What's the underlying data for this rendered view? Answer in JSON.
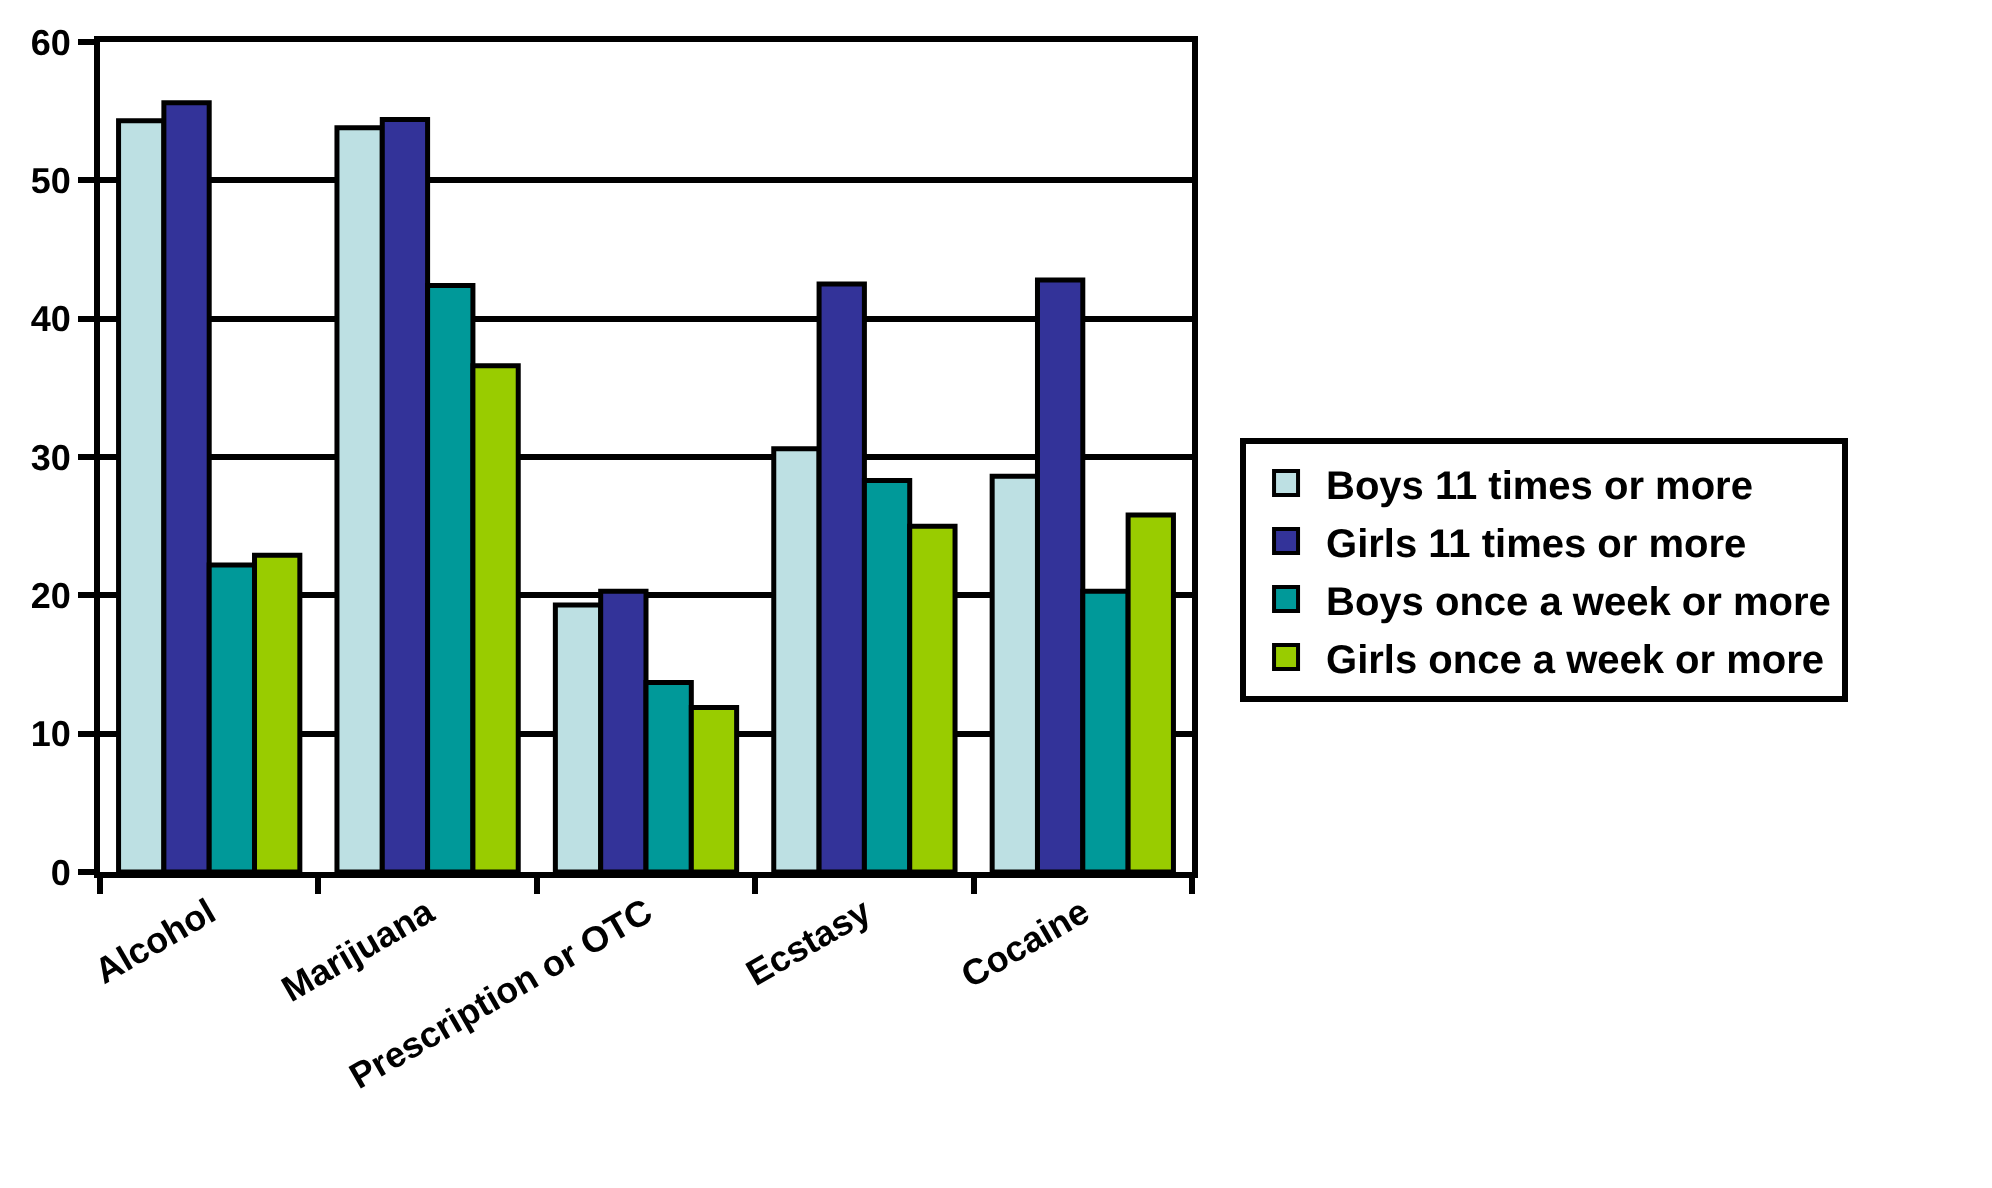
{
  "chart_data": {
    "type": "bar",
    "categories": [
      "Alcohol",
      "Marijuana",
      "Prescription or OTC",
      "Ecstasy",
      "Cocaine"
    ],
    "series": [
      {
        "name": "Boys 11 times or more",
        "color": "#bde0e3",
        "values": [
          54.3,
          53.8,
          19.3,
          30.6,
          28.6
        ]
      },
      {
        "name": "Girls 11 times or more",
        "color": "#333399",
        "values": [
          55.6,
          54.4,
          20.3,
          42.5,
          42.8
        ]
      },
      {
        "name": "Boys once a week or more",
        "color": "#009999",
        "values": [
          22.2,
          42.4,
          13.7,
          28.3,
          20.3
        ]
      },
      {
        "name": "Girls once a week or more",
        "color": "#99cc00",
        "values": [
          22.9,
          36.6,
          11.9,
          25.0,
          25.8
        ]
      }
    ],
    "ylim": [
      0,
      60
    ],
    "yticks": [
      0,
      10,
      20,
      30,
      40,
      50,
      60
    ],
    "grid": "y",
    "legend": "right"
  }
}
